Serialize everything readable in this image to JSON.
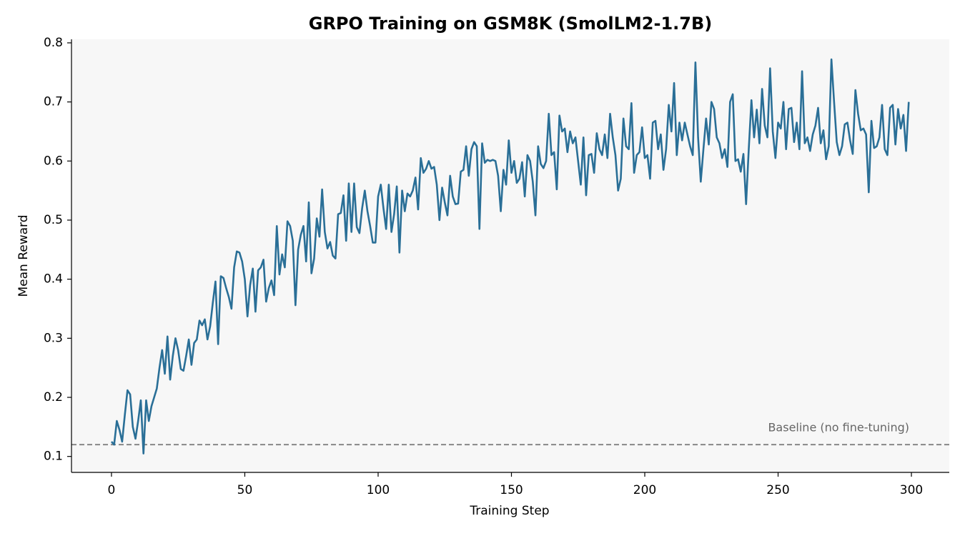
{
  "chart_data": {
    "type": "line",
    "title": "GRPO Training on GSM8K (SmolLM2-1.7B)",
    "xlabel": "Training Step",
    "ylabel": "Mean Reward",
    "xlim": [
      -15,
      314.2
    ],
    "ylim": [
      0.073,
      0.806
    ],
    "xticks": [
      0,
      50,
      100,
      150,
      200,
      250,
      300
    ],
    "yticks": [
      0.1,
      0.2,
      0.3,
      0.4,
      0.5,
      0.6,
      0.7,
      0.8
    ],
    "grid": false,
    "background": "#f7f7f7",
    "baseline": {
      "value": 0.12,
      "label": "Baseline (no fine-tuning)",
      "color": "#888888"
    },
    "x": [
      0,
      1,
      2,
      3,
      4,
      5,
      6,
      7,
      8,
      9,
      10,
      11,
      12,
      13,
      14,
      15,
      16,
      17,
      18,
      19,
      20,
      21,
      22,
      23,
      24,
      25,
      26,
      27,
      28,
      29,
      30,
      31,
      32,
      33,
      34,
      35,
      36,
      37,
      38,
      39,
      40,
      41,
      42,
      43,
      44,
      45,
      46,
      47,
      48,
      49,
      50,
      51,
      52,
      53,
      54,
      55,
      56,
      57,
      58,
      59,
      60,
      61,
      62,
      63,
      64,
      65,
      66,
      67,
      68,
      69,
      70,
      71,
      72,
      73,
      74,
      75,
      76,
      77,
      78,
      79,
      80,
      81,
      82,
      83,
      84,
      85,
      86,
      87,
      88,
      89,
      90,
      91,
      92,
      93,
      94,
      95,
      96,
      97,
      98,
      99,
      100,
      101,
      102,
      103,
      104,
      105,
      106,
      107,
      108,
      109,
      110,
      111,
      112,
      113,
      114,
      115,
      116,
      117,
      118,
      119,
      120,
      121,
      122,
      123,
      124,
      125,
      126,
      127,
      128,
      129,
      130,
      131,
      132,
      133,
      134,
      135,
      136,
      137,
      138,
      139,
      140,
      141,
      142,
      143,
      144,
      145,
      146,
      147,
      148,
      149,
      150,
      151,
      152,
      153,
      154,
      155,
      156,
      157,
      158,
      159,
      160,
      161,
      162,
      163,
      164,
      165,
      166,
      167,
      168,
      169,
      170,
      171,
      172,
      173,
      174,
      175,
      176,
      177,
      178,
      179,
      180,
      181,
      182,
      183,
      184,
      185,
      186,
      187,
      188,
      189,
      190,
      191,
      192,
      193,
      194,
      195,
      196,
      197,
      198,
      199,
      200,
      201,
      202,
      203,
      204,
      205,
      206,
      207,
      208,
      209,
      210,
      211,
      212,
      213,
      214,
      215,
      216,
      217,
      218,
      219,
      220,
      221,
      222,
      223,
      224,
      225,
      226,
      227,
      228,
      229,
      230,
      231,
      232,
      233,
      234,
      235,
      236,
      237,
      238,
      239,
      240,
      241,
      242,
      243,
      244,
      245,
      246,
      247,
      248,
      249,
      250,
      251,
      252,
      253,
      254,
      255,
      256,
      257,
      258,
      259,
      260,
      261,
      262,
      263,
      264,
      265,
      266,
      267,
      268,
      269,
      270,
      271,
      272,
      273,
      274,
      275,
      276,
      277,
      278,
      279,
      280,
      281,
      282,
      283,
      284,
      285,
      286,
      287,
      288,
      289,
      290,
      291,
      292,
      293,
      294,
      295,
      296,
      297,
      298,
      299
    ],
    "series": [
      {
        "color": "#2a6f97",
        "values": [
          0.125,
          0.12,
          0.16,
          0.145,
          0.125,
          0.17,
          0.212,
          0.205,
          0.15,
          0.13,
          0.16,
          0.195,
          0.105,
          0.195,
          0.16,
          0.185,
          0.2,
          0.215,
          0.25,
          0.28,
          0.24,
          0.303,
          0.23,
          0.27,
          0.3,
          0.28,
          0.248,
          0.245,
          0.27,
          0.298,
          0.255,
          0.292,
          0.298,
          0.33,
          0.322,
          0.332,
          0.298,
          0.32,
          0.36,
          0.396,
          0.29,
          0.405,
          0.402,
          0.385,
          0.37,
          0.35,
          0.42,
          0.447,
          0.445,
          0.43,
          0.4,
          0.337,
          0.39,
          0.418,
          0.345,
          0.415,
          0.42,
          0.433,
          0.362,
          0.385,
          0.398,
          0.373,
          0.49,
          0.408,
          0.442,
          0.42,
          0.498,
          0.49,
          0.465,
          0.356,
          0.45,
          0.475,
          0.49,
          0.43,
          0.53,
          0.41,
          0.435,
          0.503,
          0.472,
          0.552,
          0.48,
          0.452,
          0.463,
          0.44,
          0.435,
          0.51,
          0.512,
          0.542,
          0.465,
          0.562,
          0.48,
          0.562,
          0.488,
          0.478,
          0.52,
          0.55,
          0.515,
          0.49,
          0.462,
          0.462,
          0.54,
          0.56,
          0.52,
          0.485,
          0.56,
          0.48,
          0.51,
          0.557,
          0.445,
          0.55,
          0.515,
          0.545,
          0.54,
          0.55,
          0.572,
          0.518,
          0.605,
          0.58,
          0.587,
          0.6,
          0.587,
          0.59,
          0.56,
          0.5,
          0.555,
          0.53,
          0.508,
          0.575,
          0.54,
          0.527,
          0.528,
          0.582,
          0.585,
          0.625,
          0.575,
          0.62,
          0.632,
          0.625,
          0.485,
          0.63,
          0.597,
          0.602,
          0.6,
          0.602,
          0.6,
          0.575,
          0.515,
          0.585,
          0.56,
          0.635,
          0.58,
          0.6,
          0.563,
          0.57,
          0.598,
          0.54,
          0.61,
          0.6,
          0.565,
          0.508,
          0.625,
          0.595,
          0.588,
          0.6,
          0.68,
          0.61,
          0.615,
          0.552,
          0.677,
          0.65,
          0.655,
          0.615,
          0.65,
          0.63,
          0.64,
          0.6,
          0.56,
          0.64,
          0.542,
          0.61,
          0.612,
          0.58,
          0.647,
          0.62,
          0.61,
          0.645,
          0.605,
          0.68,
          0.64,
          0.61,
          0.55,
          0.57,
          0.672,
          0.625,
          0.62,
          0.698,
          0.58,
          0.61,
          0.615,
          0.657,
          0.605,
          0.61,
          0.57,
          0.665,
          0.668,
          0.62,
          0.645,
          0.585,
          0.62,
          0.695,
          0.65,
          0.732,
          0.61,
          0.665,
          0.635,
          0.665,
          0.645,
          0.625,
          0.61,
          0.767,
          0.64,
          0.565,
          0.62,
          0.672,
          0.628,
          0.7,
          0.688,
          0.64,
          0.63,
          0.605,
          0.62,
          0.59,
          0.7,
          0.713,
          0.6,
          0.603,
          0.582,
          0.612,
          0.527,
          0.62,
          0.703,
          0.64,
          0.687,
          0.63,
          0.722,
          0.66,
          0.64,
          0.757,
          0.65,
          0.605,
          0.665,
          0.655,
          0.7,
          0.62,
          0.688,
          0.69,
          0.632,
          0.665,
          0.62,
          0.752,
          0.63,
          0.64,
          0.617,
          0.645,
          0.66,
          0.69,
          0.63,
          0.652,
          0.603,
          0.625,
          0.772,
          0.7,
          0.632,
          0.61,
          0.625,
          0.662,
          0.665,
          0.635,
          0.612,
          0.72,
          0.68,
          0.652,
          0.655,
          0.645,
          0.547,
          0.668,
          0.622,
          0.625,
          0.64,
          0.695,
          0.62,
          0.61,
          0.69,
          0.695,
          0.628,
          0.688,
          0.655,
          0.678,
          0.617,
          0.7
        ]
      }
    ]
  }
}
